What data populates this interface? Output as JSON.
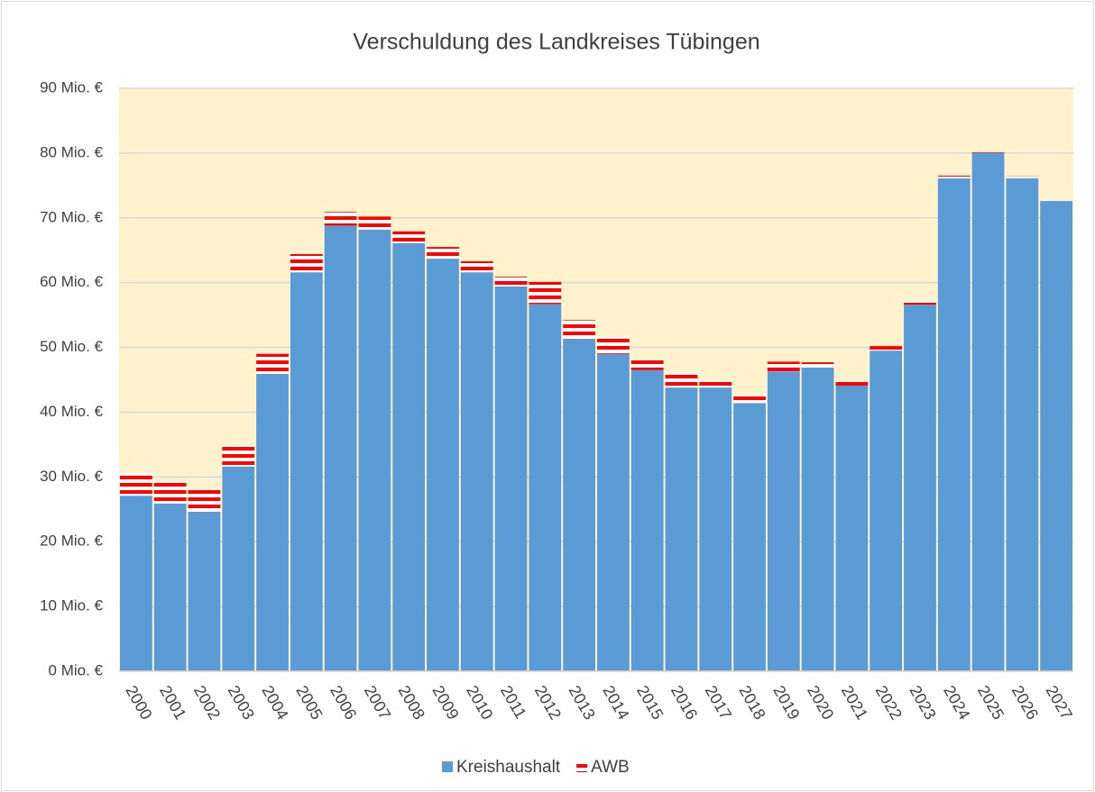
{
  "chart_data": {
    "type": "stacked_bar",
    "title": "Verschuldung des Landkreises Tübingen",
    "categories": [
      "2000",
      "2001",
      "2002",
      "2003",
      "2004",
      "2005",
      "2006",
      "2007",
      "2008",
      "2009",
      "2010",
      "2011",
      "2012",
      "2013",
      "2014",
      "2015",
      "2016",
      "2017",
      "2018",
      "2019",
      "2020",
      "2021",
      "2022",
      "2023",
      "2024",
      "2025",
      "2026",
      "2027"
    ],
    "series": [
      {
        "name": "Kreishaushalt",
        "color": "#5b9bd5",
        "values": [
          27.1,
          25.9,
          24.6,
          31.6,
          45.9,
          61.6,
          68.8,
          68.2,
          66.1,
          63.7,
          61.6,
          59.4,
          56.7,
          51.3,
          49.0,
          46.5,
          43.8,
          43.8,
          41.4,
          46.3,
          46.9,
          44.1,
          49.5,
          56.6,
          76.1,
          80.0,
          76.1,
          72.6
        ]
      },
      {
        "name": "AWB",
        "color": "#ff0000",
        "values": [
          3.5,
          3.4,
          3.5,
          3.3,
          3.1,
          2.8,
          2.1,
          2.0,
          1.8,
          1.8,
          1.7,
          1.5,
          3.4,
          2.9,
          2.6,
          1.6,
          2.2,
          1.1,
          1.2,
          1.5,
          0.8,
          0.7,
          0.7,
          0.6,
          0.4,
          0.1,
          0.3,
          0
        ]
      }
    ],
    "ylim": [
      0,
      90
    ],
    "yticks": [
      {
        "value": 0,
        "label": "0 Mio. €"
      },
      {
        "value": 10,
        "label": "10 Mio. €"
      },
      {
        "value": 20,
        "label": "20 Mio. €"
      },
      {
        "value": 30,
        "label": "30 Mio. €"
      },
      {
        "value": 40,
        "label": "40 Mio. €"
      },
      {
        "value": 50,
        "label": "50 Mio. €"
      },
      {
        "value": 60,
        "label": "60 Mio. €"
      },
      {
        "value": 70,
        "label": "70 Mio. €"
      },
      {
        "value": 80,
        "label": "80 Mio. €"
      },
      {
        "value": 90,
        "label": "90 Mio. €"
      }
    ],
    "grid": true,
    "plot_color": "#fff2cc",
    "legend": "bottom"
  }
}
